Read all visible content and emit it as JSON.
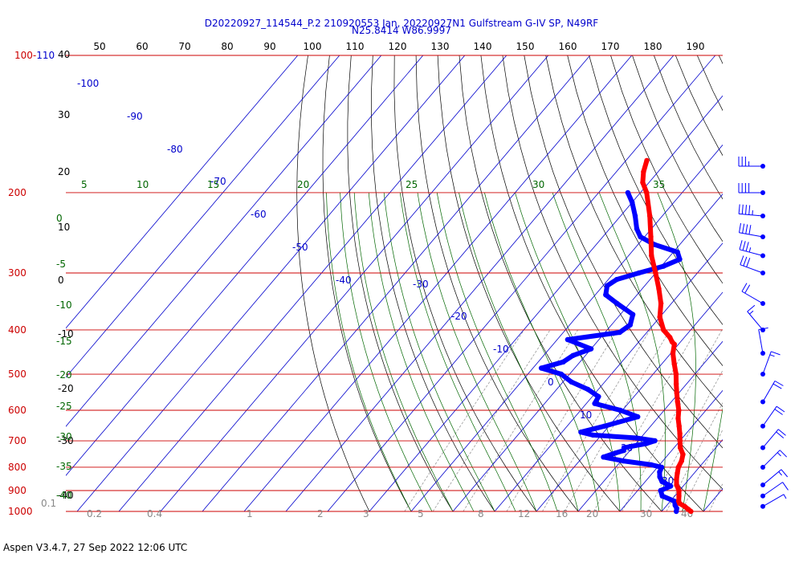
{
  "title_line1": "D20220927_114544_P.2 210920553 Jan, 20220927N1 Gulfstream G-IV SP, N49RF",
  "title_line2": "N25.8414 W86.9997",
  "footer": "Aspen V3.4.7, 27 Sep 2022  12:06 UTC",
  "colors": {
    "temperature": "#ff0000",
    "dewpoint": "#0000ff",
    "isobar": "#cc0000",
    "isotherm": "#0000cc",
    "dry_adiabat": "#000000",
    "moist_adiabat": "#006600",
    "mixing_ratio": "#999999"
  },
  "chart_data": {
    "type": "skew-t log-p",
    "pressure_levels": [
      100,
      200,
      300,
      400,
      500,
      600,
      700,
      800,
      900,
      1000
    ],
    "pressure_label_top": "100-110",
    "top_axis_ticks": [
      "50",
      "60",
      "70",
      "80",
      "90",
      "100",
      "110",
      "120",
      "130",
      "140",
      "150",
      "160",
      "170",
      "180",
      "190"
    ],
    "left_axis_labels": [
      "40",
      "30",
      "20",
      "10",
      "0",
      "-10",
      "-20",
      "-30",
      "-40"
    ],
    "isotherm_labels": [
      "-100",
      "-90",
      "-80",
      "-70",
      "-60",
      "-50",
      "-40",
      "-30",
      "-20",
      "-10",
      "0",
      "10",
      "20",
      "30"
    ],
    "theta_labels": [
      "5",
      "10",
      "15",
      "20",
      "25",
      "30",
      "35"
    ],
    "theta_left_labels": [
      "0",
      "-5",
      "-10",
      "-15",
      "-20",
      "-25",
      "-30",
      "-35",
      "-40"
    ],
    "mixing_ratio_labels": [
      "0.1",
      "0.2",
      "0.4",
      "1",
      "2",
      "3",
      "5",
      "8",
      "12",
      "16",
      "20",
      "30",
      "40"
    ],
    "temperature_profile": [
      {
        "p": 1000,
        "t": 27.0
      },
      {
        "p": 990,
        "t": 26.0
      },
      {
        "p": 975,
        "t": 24.5
      },
      {
        "p": 960,
        "t": 22.6
      },
      {
        "p": 950,
        "t": 22.0
      },
      {
        "p": 925,
        "t": 21.0
      },
      {
        "p": 900,
        "t": 19.9
      },
      {
        "p": 875,
        "t": 18.2
      },
      {
        "p": 850,
        "t": 17.0
      },
      {
        "p": 825,
        "t": 16.0
      },
      {
        "p": 800,
        "t": 15.0
      },
      {
        "p": 775,
        "t": 14.5
      },
      {
        "p": 750,
        "t": 13.5
      },
      {
        "p": 725,
        "t": 11.5
      },
      {
        "p": 700,
        "t": 10.0
      },
      {
        "p": 675,
        "t": 8.5
      },
      {
        "p": 650,
        "t": 6.8
      },
      {
        "p": 625,
        "t": 5.0
      },
      {
        "p": 600,
        "t": 3.5
      },
      {
        "p": 575,
        "t": 1.5
      },
      {
        "p": 550,
        "t": -0.5
      },
      {
        "p": 525,
        "t": -2.5
      },
      {
        "p": 500,
        "t": -4.5
      },
      {
        "p": 475,
        "t": -7.0
      },
      {
        "p": 450,
        "t": -9.5
      },
      {
        "p": 430,
        "t": -11.0
      },
      {
        "p": 425,
        "t": -12.0
      },
      {
        "p": 415,
        "t": -13.5
      },
      {
        "p": 400,
        "t": -16.5
      },
      {
        "p": 375,
        "t": -20.0
      },
      {
        "p": 350,
        "t": -22.5
      },
      {
        "p": 325,
        "t": -26.0
      },
      {
        "p": 300,
        "t": -30.0
      },
      {
        "p": 275,
        "t": -34.5
      },
      {
        "p": 250,
        "t": -38.5
      },
      {
        "p": 225,
        "t": -43.0
      },
      {
        "p": 200,
        "t": -48.5
      },
      {
        "p": 190,
        "t": -51.5
      },
      {
        "p": 180,
        "t": -53.5
      },
      {
        "p": 170,
        "t": -55.0
      }
    ],
    "dewpoint_profile": [
      {
        "p": 1000,
        "t": 23.5
      },
      {
        "p": 985,
        "t": 23.0
      },
      {
        "p": 970,
        "t": 22.0
      },
      {
        "p": 950,
        "t": 21.0
      },
      {
        "p": 925,
        "t": 17.0
      },
      {
        "p": 900,
        "t": 15.5
      },
      {
        "p": 880,
        "t": 17.0
      },
      {
        "p": 860,
        "t": 14.0
      },
      {
        "p": 840,
        "t": 12.5
      },
      {
        "p": 820,
        "t": 11.5
      },
      {
        "p": 800,
        "t": 11.0
      },
      {
        "p": 790,
        "t": 8.0
      },
      {
        "p": 775,
        "t": 0.5
      },
      {
        "p": 760,
        "t": -5.0
      },
      {
        "p": 745,
        "t": -3.0
      },
      {
        "p": 735,
        "t": -1.5
      },
      {
        "p": 725,
        "t": -2.0
      },
      {
        "p": 710,
        "t": 2.5
      },
      {
        "p": 700,
        "t": 4.0
      },
      {
        "p": 690,
        "t": -1.0
      },
      {
        "p": 680,
        "t": -12.0
      },
      {
        "p": 670,
        "t": -15.5
      },
      {
        "p": 650,
        "t": -11.0
      },
      {
        "p": 620,
        "t": -5.0
      },
      {
        "p": 600,
        "t": -10.5
      },
      {
        "p": 580,
        "t": -18.0
      },
      {
        "p": 560,
        "t": -18.5
      },
      {
        "p": 540,
        "t": -22.5
      },
      {
        "p": 520,
        "t": -28.0
      },
      {
        "p": 500,
        "t": -32.0
      },
      {
        "p": 485,
        "t": -38.0
      },
      {
        "p": 470,
        "t": -34.0
      },
      {
        "p": 455,
        "t": -33.0
      },
      {
        "p": 440,
        "t": -30.0
      },
      {
        "p": 420,
        "t": -37.5
      },
      {
        "p": 405,
        "t": -26.5
      },
      {
        "p": 390,
        "t": -25.5
      },
      {
        "p": 370,
        "t": -27.0
      },
      {
        "p": 350,
        "t": -33.0
      },
      {
        "p": 335,
        "t": -37.5
      },
      {
        "p": 320,
        "t": -39.0
      },
      {
        "p": 310,
        "t": -38.0
      },
      {
        "p": 300,
        "t": -34.0
      },
      {
        "p": 290,
        "t": -29.5
      },
      {
        "p": 280,
        "t": -27.0
      },
      {
        "p": 270,
        "t": -29.0
      },
      {
        "p": 260,
        "t": -36.0
      },
      {
        "p": 250,
        "t": -41.0
      },
      {
        "p": 240,
        "t": -43.5
      },
      {
        "p": 225,
        "t": -46.5
      },
      {
        "p": 210,
        "t": -50.0
      },
      {
        "p": 200,
        "t": -53.0
      }
    ],
    "wind_barbs": [
      {
        "p": 175,
        "speed": 35,
        "dir": 270
      },
      {
        "p": 200,
        "speed": 40,
        "dir": 270
      },
      {
        "p": 225,
        "speed": 45,
        "dir": 275
      },
      {
        "p": 250,
        "speed": 40,
        "dir": 280
      },
      {
        "p": 275,
        "speed": 35,
        "dir": 285
      },
      {
        "p": 300,
        "speed": 30,
        "dir": 290
      },
      {
        "p": 350,
        "speed": 20,
        "dir": 300
      },
      {
        "p": 400,
        "speed": 15,
        "dir": 320
      },
      {
        "p": 450,
        "speed": 10,
        "dir": 350
      },
      {
        "p": 500,
        "speed": 15,
        "dir": 20
      },
      {
        "p": 575,
        "speed": 20,
        "dir": 30
      },
      {
        "p": 650,
        "speed": 20,
        "dir": 35
      },
      {
        "p": 725,
        "speed": 20,
        "dir": 40
      },
      {
        "p": 800,
        "speed": 15,
        "dir": 45
      },
      {
        "p": 875,
        "speed": 15,
        "dir": 50
      },
      {
        "p": 925,
        "speed": 10,
        "dir": 55
      },
      {
        "p": 975,
        "speed": 5,
        "dir": 60
      }
    ]
  }
}
